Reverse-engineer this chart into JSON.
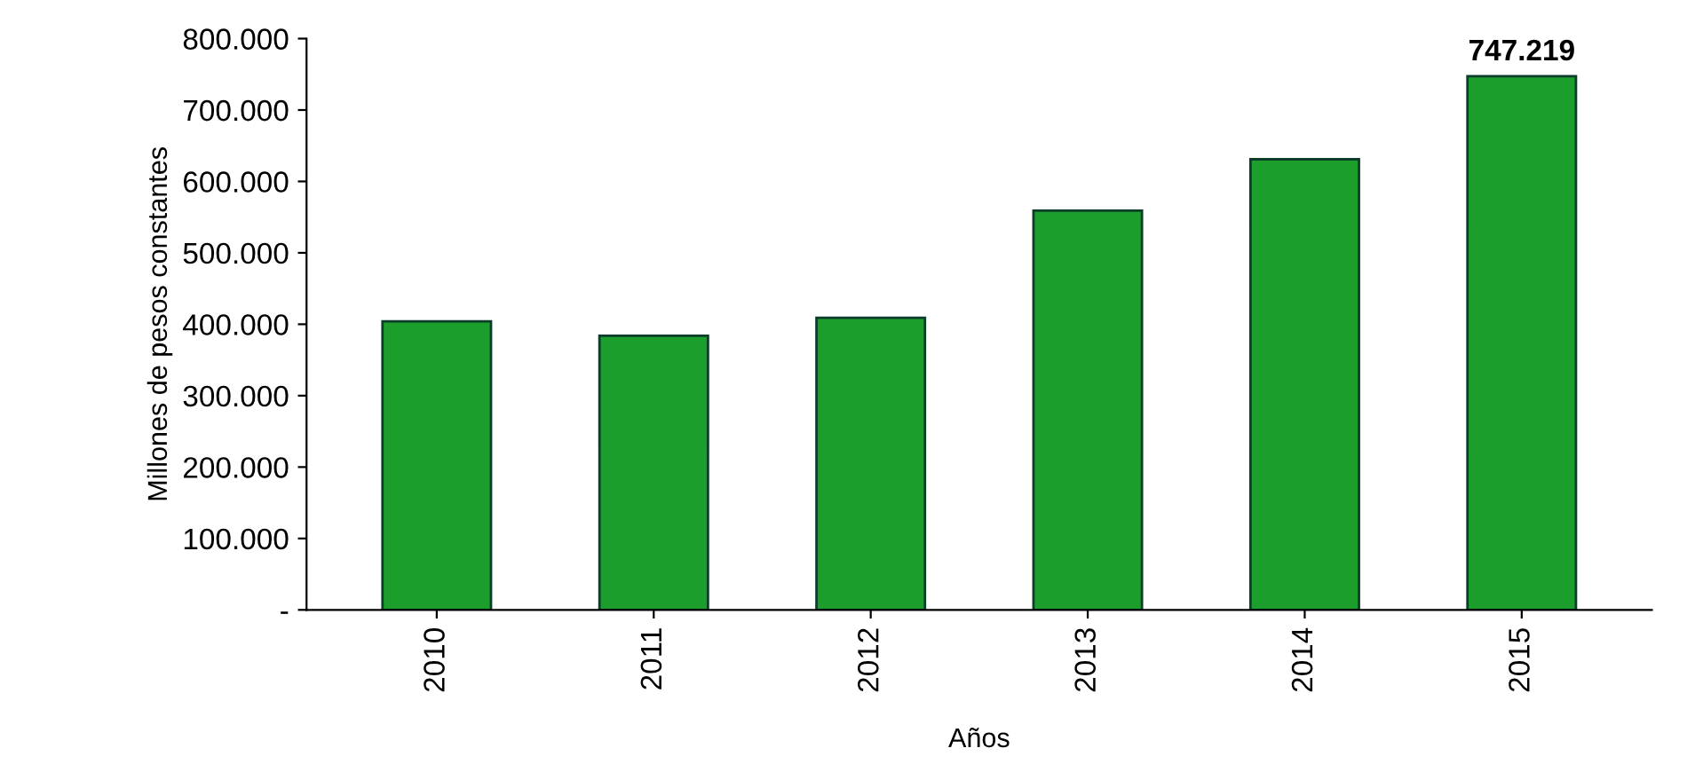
{
  "chart_data": {
    "type": "bar",
    "xlabel": "Años",
    "ylabel": "Millones de pesos constantes",
    "categories": [
      "2010",
      "2011",
      "2012",
      "2013",
      "2014",
      "2015"
    ],
    "values": [
      404000,
      384000,
      409000,
      559000,
      631000,
      747219
    ],
    "value_labels": [
      null,
      null,
      null,
      null,
      null,
      "747.219"
    ],
    "color": "#1c9e2c",
    "ylim": [
      0,
      800000
    ],
    "yticks": [
      {
        "value": 0,
        "label": "-"
      },
      {
        "value": 100000,
        "label": "100.000"
      },
      {
        "value": 200000,
        "label": "200.000"
      },
      {
        "value": 300000,
        "label": "300.000"
      },
      {
        "value": 400000,
        "label": "400.000"
      },
      {
        "value": 500000,
        "label": "500.000"
      },
      {
        "value": 600000,
        "label": "600.000"
      },
      {
        "value": 700000,
        "label": "700.000"
      },
      {
        "value": 800000,
        "label": "800.000"
      }
    ],
    "grid": false
  }
}
